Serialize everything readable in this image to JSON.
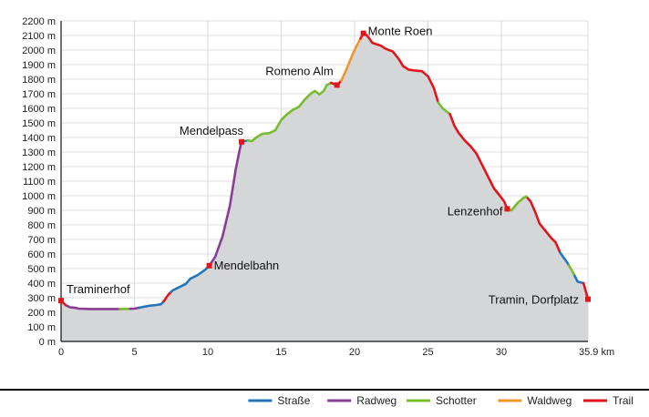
{
  "chart_data": {
    "type": "area",
    "title": "",
    "xlabel": "km",
    "ylabel": "m",
    "xlim": [
      0,
      35.9
    ],
    "ylim": [
      0,
      2200
    ],
    "x_ticks": [
      0,
      5,
      10,
      15,
      20,
      25,
      30,
      35.9
    ],
    "x_tick_labels": [
      "0",
      "5",
      "10",
      "15",
      "20",
      "25",
      "30",
      "35.9 km"
    ],
    "y_ticks": [
      0,
      100,
      200,
      300,
      400,
      500,
      600,
      700,
      800,
      900,
      1000,
      1100,
      1200,
      1300,
      1400,
      1500,
      1600,
      1700,
      1800,
      1900,
      2000,
      2100,
      2200
    ],
    "y_tick_labels": [
      "0 m",
      "100 m",
      "200 m",
      "300 m",
      "400 m",
      "500 m",
      "600 m",
      "700 m",
      "800 m",
      "900 m",
      "1000 m",
      "1100 m",
      "1200 m",
      "1300 m",
      "1400 m",
      "1500 m",
      "1600 m",
      "1700 m",
      "1800 m",
      "1900 m",
      "2000 m",
      "2100 m",
      "2200 m"
    ],
    "grid": true,
    "fill_color": "#d4d6d8",
    "profile": [
      [
        0,
        280
      ],
      [
        0.3,
        250
      ],
      [
        0.6,
        235
      ],
      [
        1,
        230
      ],
      [
        1.2,
        225
      ],
      [
        2,
        222
      ],
      [
        3,
        222
      ],
      [
        4,
        222
      ],
      [
        5,
        225
      ],
      [
        5.5,
        235
      ],
      [
        6,
        245
      ],
      [
        6.5,
        250
      ],
      [
        6.8,
        255
      ],
      [
        7,
        275
      ],
      [
        7.3,
        320
      ],
      [
        7.6,
        350
      ],
      [
        8,
        370
      ],
      [
        8.5,
        395
      ],
      [
        8.8,
        430
      ],
      [
        9.3,
        455
      ],
      [
        9.8,
        490
      ],
      [
        10.1,
        520
      ],
      [
        10.5,
        580
      ],
      [
        11,
        720
      ],
      [
        11.5,
        930
      ],
      [
        11.9,
        1180
      ],
      [
        12.2,
        1330
      ],
      [
        12.3,
        1370
      ],
      [
        12.7,
        1380
      ],
      [
        13,
        1375
      ],
      [
        13.3,
        1400
      ],
      [
        13.7,
        1425
      ],
      [
        14.2,
        1430
      ],
      [
        14.6,
        1450
      ],
      [
        15.0,
        1520
      ],
      [
        15.4,
        1560
      ],
      [
        15.8,
        1590
      ],
      [
        16.2,
        1610
      ],
      [
        16.6,
        1660
      ],
      [
        17,
        1700
      ],
      [
        17.3,
        1720
      ],
      [
        17.6,
        1695
      ],
      [
        17.9,
        1720
      ],
      [
        18.1,
        1760
      ],
      [
        18.4,
        1775
      ],
      [
        18.8,
        1760
      ],
      [
        19.1,
        1790
      ],
      [
        19.5,
        1880
      ],
      [
        19.9,
        1980
      ],
      [
        20.3,
        2060
      ],
      [
        20.6,
        2115
      ],
      [
        20.8,
        2105
      ],
      [
        21.0,
        2080
      ],
      [
        21.2,
        2050
      ],
      [
        21.5,
        2040
      ],
      [
        21.8,
        2030
      ],
      [
        22.1,
        2010
      ],
      [
        22.6,
        1990
      ],
      [
        23,
        1940
      ],
      [
        23.3,
        1890
      ],
      [
        23.7,
        1865
      ],
      [
        24.1,
        1860
      ],
      [
        24.6,
        1855
      ],
      [
        25,
        1820
      ],
      [
        25.4,
        1740
      ],
      [
        25.7,
        1640
      ],
      [
        26,
        1600
      ],
      [
        26.5,
        1560
      ],
      [
        26.8,
        1480
      ],
      [
        27.1,
        1430
      ],
      [
        27.5,
        1380
      ],
      [
        27.9,
        1340
      ],
      [
        28.3,
        1290
      ],
      [
        28.7,
        1210
      ],
      [
        29.1,
        1130
      ],
      [
        29.5,
        1050
      ],
      [
        29.9,
        1000
      ],
      [
        30.2,
        960
      ],
      [
        30.4,
        910
      ],
      [
        30.7,
        900
      ],
      [
        31.1,
        950
      ],
      [
        31.5,
        985
      ],
      [
        31.7,
        995
      ],
      [
        32.0,
        960
      ],
      [
        32.3,
        890
      ],
      [
        32.6,
        810
      ],
      [
        33.0,
        760
      ],
      [
        33.4,
        710
      ],
      [
        33.7,
        680
      ],
      [
        34.0,
        610
      ],
      [
        34.5,
        540
      ],
      [
        34.9,
        470
      ],
      [
        35.2,
        410
      ],
      [
        35.6,
        400
      ],
      [
        35.9,
        290
      ]
    ],
    "segments": [
      {
        "type": "Trail",
        "from": 0,
        "to": 0.4
      },
      {
        "type": "Radweg",
        "from": 0.4,
        "to": 4.0
      },
      {
        "type": "Schotter",
        "from": 4.0,
        "to": 4.7
      },
      {
        "type": "Radweg",
        "from": 4.7,
        "to": 5.3
      },
      {
        "type": "Straße",
        "from": 5.3,
        "to": 7.0
      },
      {
        "type": "Trail",
        "from": 7.0,
        "to": 7.5
      },
      {
        "type": "Straße",
        "from": 7.5,
        "to": 10.1
      },
      {
        "type": "Radweg",
        "from": 10.1,
        "to": 12.3
      },
      {
        "type": "Straße",
        "from": 12.3,
        "to": 12.7
      },
      {
        "type": "Schotter",
        "from": 12.7,
        "to": 18.4
      },
      {
        "type": "Trail",
        "from": 18.4,
        "to": 19.1
      },
      {
        "type": "Waldweg",
        "from": 19.1,
        "to": 20.4
      },
      {
        "type": "Trail",
        "from": 20.4,
        "to": 25.7
      },
      {
        "type": "Schotter",
        "from": 25.7,
        "to": 26.5
      },
      {
        "type": "Trail",
        "from": 26.5,
        "to": 30.4
      },
      {
        "type": "Schotter",
        "from": 30.4,
        "to": 31.8
      },
      {
        "type": "Trail",
        "from": 31.8,
        "to": 34.0
      },
      {
        "type": "Straße",
        "from": 34.0,
        "to": 34.6
      },
      {
        "type": "Schotter",
        "from": 34.6,
        "to": 35.0
      },
      {
        "type": "Straße",
        "from": 35.0,
        "to": 35.6
      },
      {
        "type": "Trail",
        "from": 35.6,
        "to": 35.9
      }
    ],
    "annotations": [
      {
        "label": "Traminerhof",
        "x": 0,
        "y": 280
      },
      {
        "label": "Mendelbahn",
        "x": 10.1,
        "y": 520
      },
      {
        "label": "Mendelpass",
        "x": 12.3,
        "y": 1370
      },
      {
        "label": "Romeno Alm",
        "x": 18.8,
        "y": 1760
      },
      {
        "label": "Monte Roen",
        "x": 20.6,
        "y": 2115
      },
      {
        "label": "Lenzenhof",
        "x": 30.4,
        "y": 910
      },
      {
        "label": "Tramin, Dorfplatz",
        "x": 35.9,
        "y": 290
      }
    ],
    "legend": [
      {
        "label": "Straße",
        "color": "#2277bb"
      },
      {
        "label": "Radweg",
        "color": "#8a3c96"
      },
      {
        "label": "Schotter",
        "color": "#78bd2f"
      },
      {
        "label": "Waldweg",
        "color": "#f0962a"
      },
      {
        "label": "Trail",
        "color": "#e0161c"
      }
    ],
    "legend_position": "bottom-right",
    "colors": {
      "Straße": "#2277bb",
      "Radweg": "#8a3c96",
      "Schotter": "#78bd2f",
      "Waldweg": "#f0962a",
      "Trail": "#e0161c",
      "marker": "#e0161c"
    }
  }
}
